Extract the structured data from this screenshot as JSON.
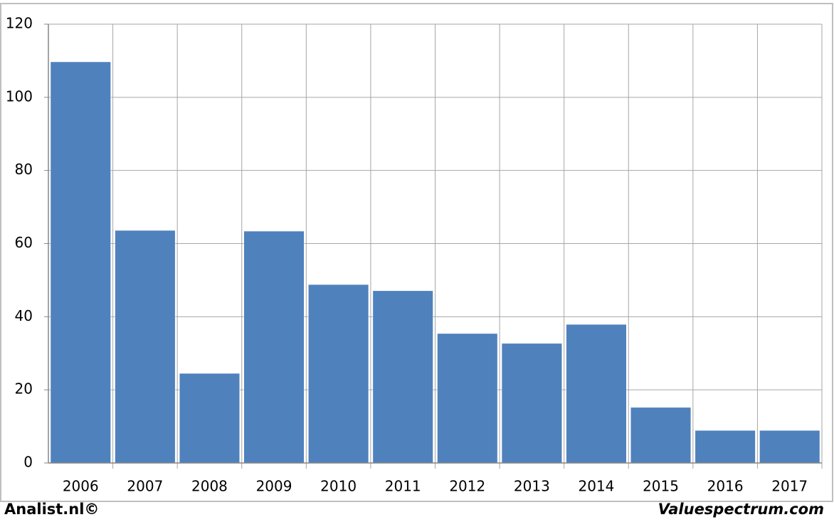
{
  "chart_data": {
    "type": "bar",
    "categories": [
      "2006",
      "2007",
      "2008",
      "2009",
      "2010",
      "2011",
      "2012",
      "2013",
      "2014",
      "2015",
      "2016",
      "2017"
    ],
    "values": [
      109.7,
      63.6,
      24.5,
      63.4,
      48.8,
      47.1,
      35.4,
      32.7,
      37.9,
      15.2,
      8.9,
      8.9
    ],
    "color": "#4f81bd",
    "ylim": [
      0,
      120
    ],
    "yticks": [
      0,
      20,
      40,
      60,
      80,
      100,
      120
    ],
    "grid": true
  },
  "footer": {
    "left": "Analist.nl©",
    "right": "Valuespectrum.com"
  }
}
